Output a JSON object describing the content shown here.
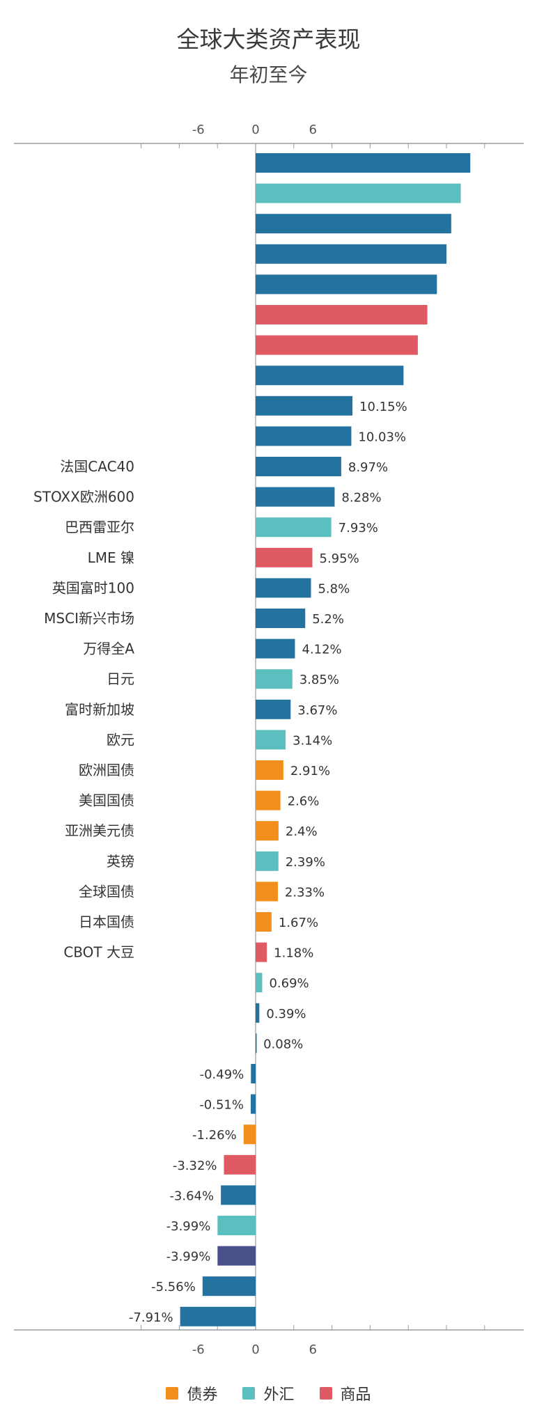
{
  "chart_data": {
    "type": "bar",
    "orientation": "horizontal",
    "title": "全球大类资产表现",
    "subtitle": "年初至今",
    "xlim": [
      -12,
      26
    ],
    "xticks": [
      -6,
      0,
      6
    ],
    "grid": false,
    "legend_position": "bottom",
    "series_colors": {
      "equity": "#23729f",
      "bond": "#f28e1b",
      "fx": "#5bbfbf",
      "commodity": "#e05a64",
      "other": "#4a5089"
    },
    "legend": [
      {
        "key": "bond",
        "label": "债券"
      },
      {
        "key": "fx",
        "label": "外汇"
      },
      {
        "key": "commodity",
        "label": "商品"
      }
    ],
    "bars": [
      {
        "label": "",
        "value": 22.5,
        "value_label": "",
        "group": "equity"
      },
      {
        "label": "",
        "value": 21.5,
        "value_label": "",
        "group": "fx"
      },
      {
        "label": "",
        "value": 20.5,
        "value_label": "",
        "group": "equity"
      },
      {
        "label": "",
        "value": 20.0,
        "value_label": "",
        "group": "equity"
      },
      {
        "label": "",
        "value": 19.0,
        "value_label": "",
        "group": "equity"
      },
      {
        "label": "",
        "value": 18.0,
        "value_label": "",
        "group": "commodity"
      },
      {
        "label": "",
        "value": 17.0,
        "value_label": "",
        "group": "commodity"
      },
      {
        "label": "",
        "value": 15.5,
        "value_label": "",
        "group": "equity"
      },
      {
        "label": "",
        "value": 10.15,
        "value_label": "10.15%",
        "group": "equity"
      },
      {
        "label": "",
        "value": 10.03,
        "value_label": "10.03%",
        "group": "equity"
      },
      {
        "label": "法国CAC40",
        "value": 8.97,
        "value_label": "8.97%",
        "group": "equity"
      },
      {
        "label": "STOXX欧洲600",
        "value": 8.28,
        "value_label": "8.28%",
        "group": "equity"
      },
      {
        "label": "巴西雷亚尔",
        "value": 7.93,
        "value_label": "7.93%",
        "group": "fx"
      },
      {
        "label": "LME 镍",
        "value": 5.95,
        "value_label": "5.95%",
        "group": "commodity"
      },
      {
        "label": "英国富时100",
        "value": 5.8,
        "value_label": "5.8%",
        "group": "equity"
      },
      {
        "label": "MSCI新兴市场",
        "value": 5.2,
        "value_label": "5.2%",
        "group": "equity"
      },
      {
        "label": "万得全A",
        "value": 4.12,
        "value_label": "4.12%",
        "group": "equity"
      },
      {
        "label": "日元",
        "value": 3.85,
        "value_label": "3.85%",
        "group": "fx"
      },
      {
        "label": "富时新加坡",
        "value": 3.67,
        "value_label": "3.67%",
        "group": "equity"
      },
      {
        "label": "欧元",
        "value": 3.14,
        "value_label": "3.14%",
        "group": "fx"
      },
      {
        "label": "欧洲国债",
        "value": 2.91,
        "value_label": "2.91%",
        "group": "bond"
      },
      {
        "label": "美国国债",
        "value": 2.6,
        "value_label": "2.6%",
        "group": "bond"
      },
      {
        "label": "亚洲美元债",
        "value": 2.4,
        "value_label": "2.4%",
        "group": "bond"
      },
      {
        "label": "英镑",
        "value": 2.39,
        "value_label": "2.39%",
        "group": "fx"
      },
      {
        "label": "全球国债",
        "value": 2.33,
        "value_label": "2.33%",
        "group": "bond"
      },
      {
        "label": "日本国债",
        "value": 1.67,
        "value_label": "1.67%",
        "group": "bond"
      },
      {
        "label": "CBOT 大豆",
        "value": 1.18,
        "value_label": "1.18%",
        "group": "commodity"
      },
      {
        "label": "",
        "value": 0.69,
        "value_label": "0.69%",
        "group": "fx"
      },
      {
        "label": "",
        "value": 0.39,
        "value_label": "0.39%",
        "group": "equity"
      },
      {
        "label": "",
        "value": 0.08,
        "value_label": "0.08%",
        "group": "equity"
      },
      {
        "label": "",
        "value": -0.49,
        "value_label": "-0.49%",
        "group": "equity"
      },
      {
        "label": "",
        "value": -0.51,
        "value_label": "-0.51%",
        "group": "equity"
      },
      {
        "label": "",
        "value": -1.26,
        "value_label": "-1.26%",
        "group": "bond"
      },
      {
        "label": "",
        "value": -3.32,
        "value_label": "-3.32%",
        "group": "commodity"
      },
      {
        "label": "",
        "value": -3.64,
        "value_label": "-3.64%",
        "group": "equity"
      },
      {
        "label": "",
        "value": -3.99,
        "value_label": "-3.99%",
        "group": "fx"
      },
      {
        "label": "",
        "value": -3.99,
        "value_label": "-3.99%",
        "group": "other"
      },
      {
        "label": "",
        "value": -5.56,
        "value_label": "-5.56%",
        "group": "equity"
      },
      {
        "label": "",
        "value": -7.91,
        "value_label": "-7.91%",
        "group": "equity"
      }
    ]
  }
}
